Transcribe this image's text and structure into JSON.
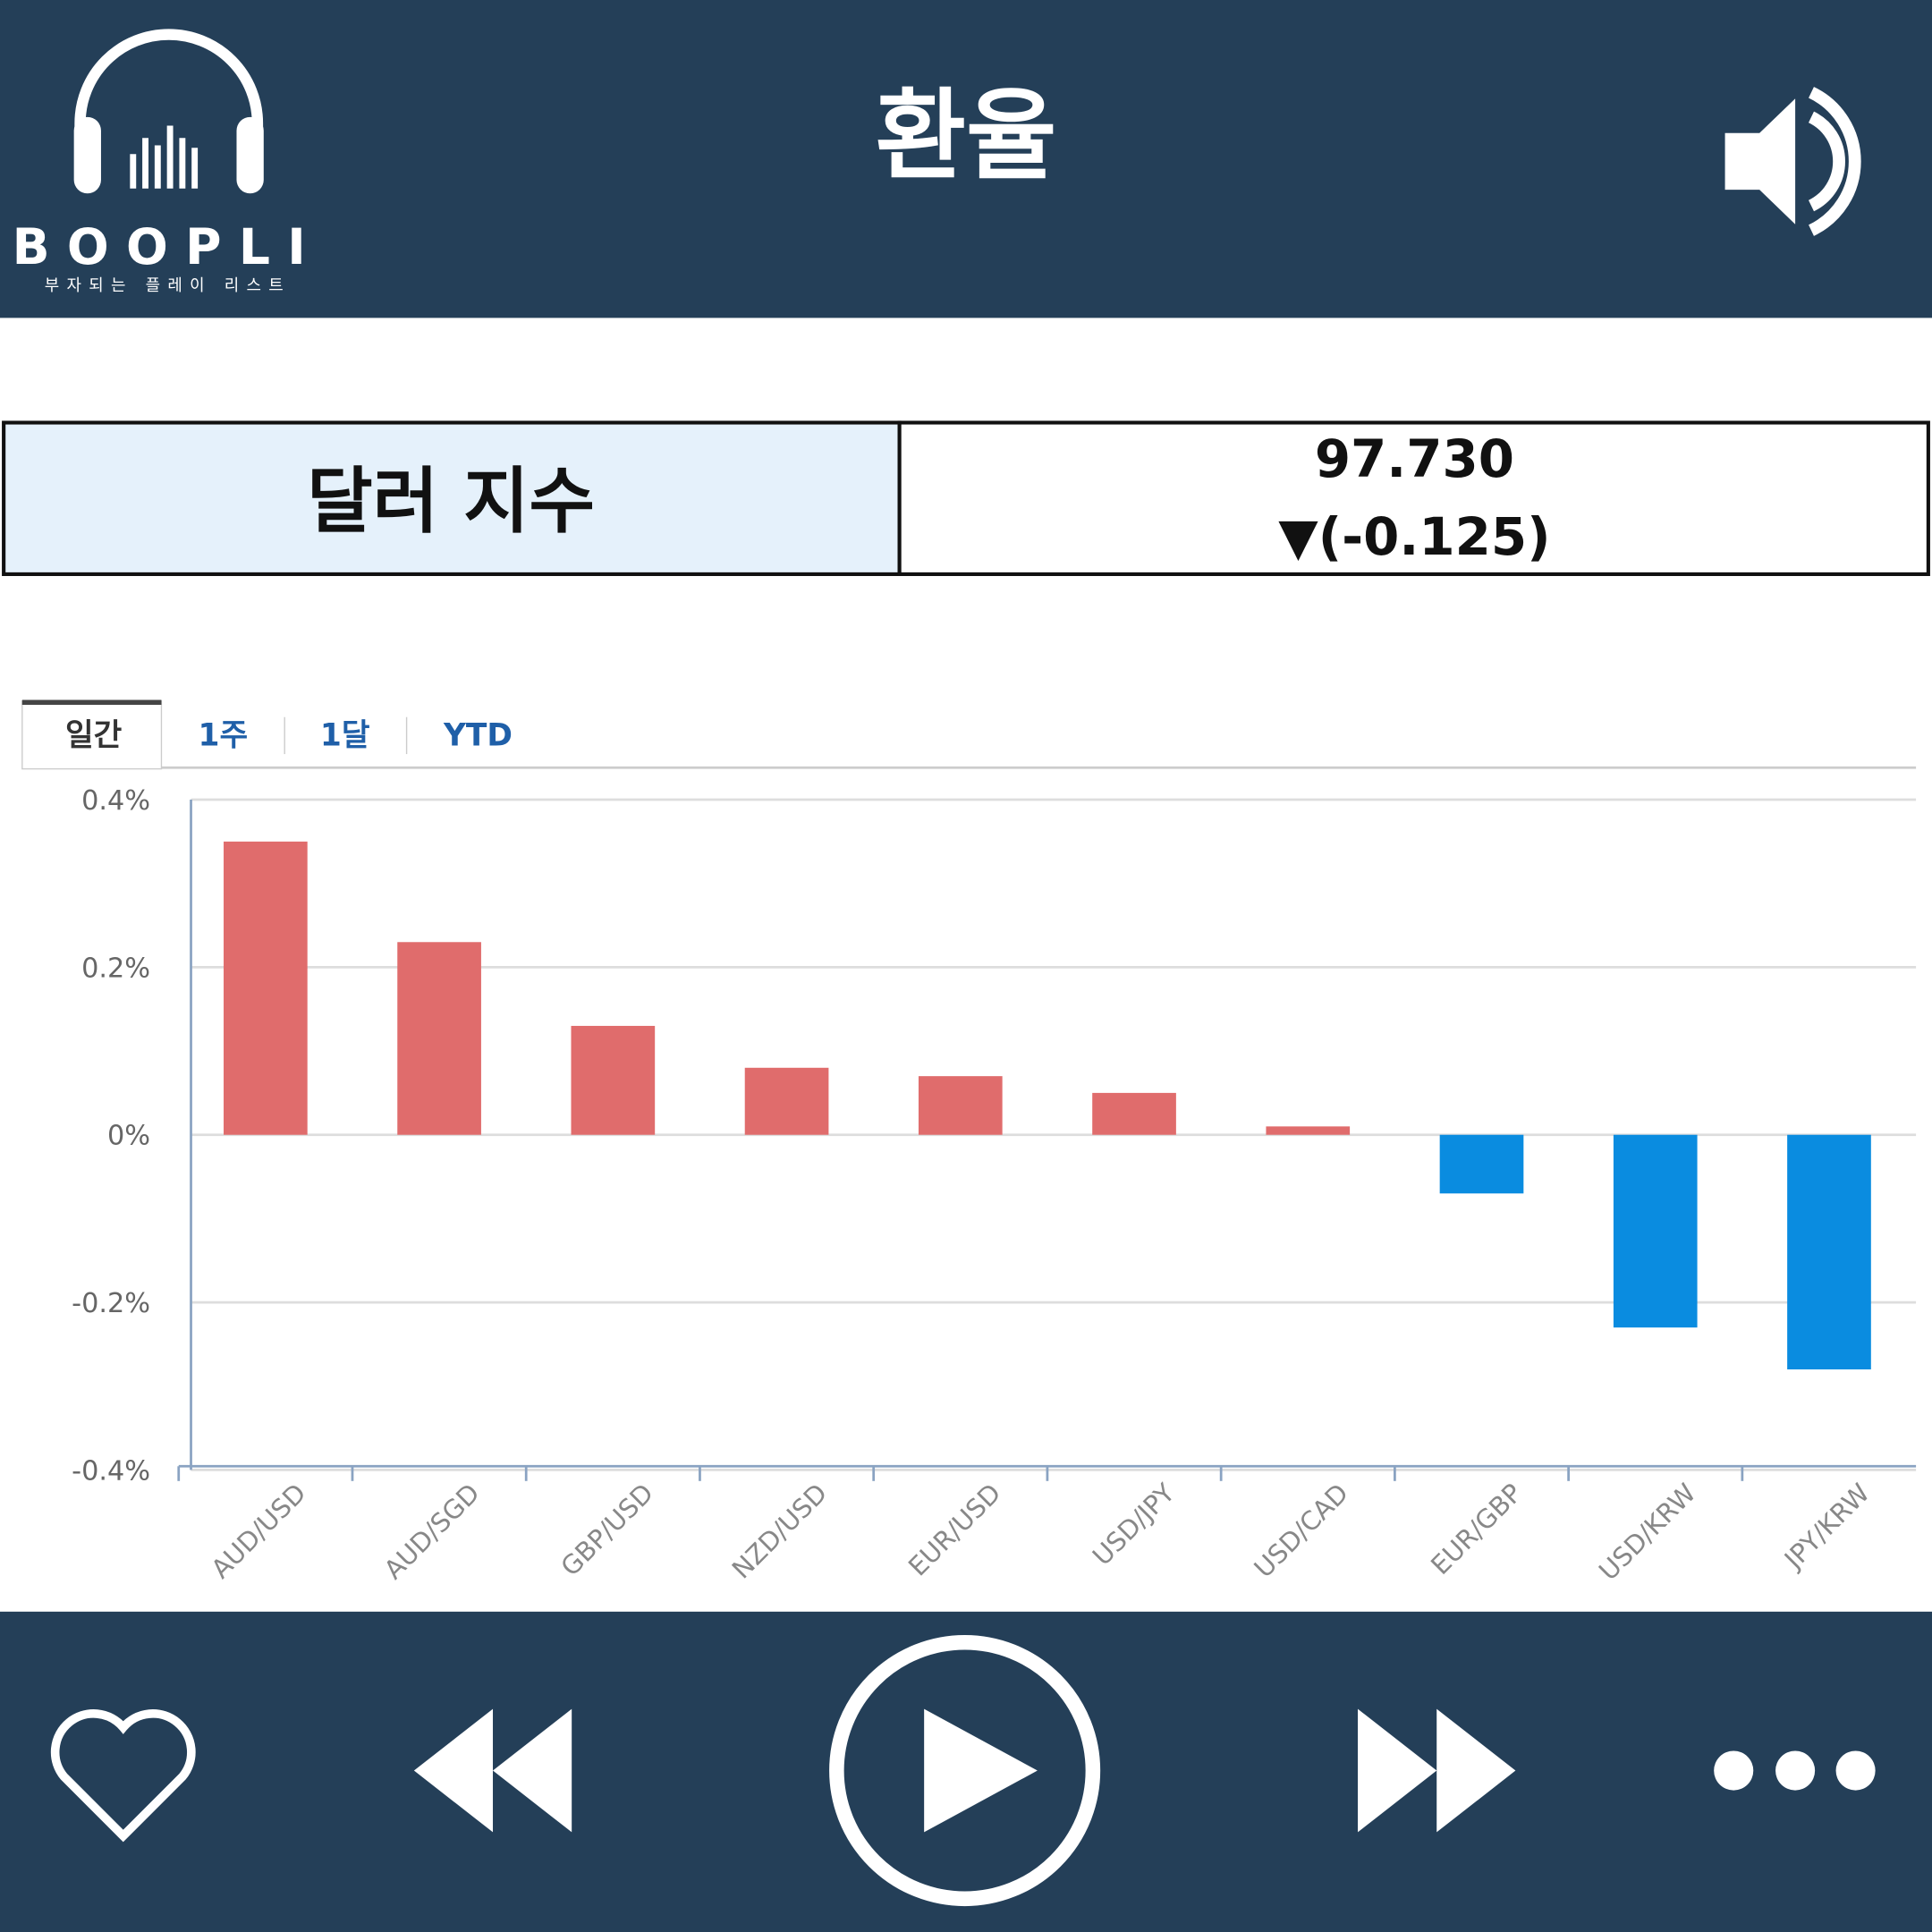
{
  "header": {
    "title": "환율",
    "logo": "BOOPLI",
    "slogan": "부자되는 플레이 리스트"
  },
  "index": {
    "label": "달러 지수",
    "value": "97.730",
    "change": "▼(-0.125)"
  },
  "tabs": [
    "일간",
    "1주",
    "1달",
    "YTD"
  ],
  "chart_data": {
    "type": "bar",
    "categories": [
      "AUD/USD",
      "AUD/SGD",
      "GBP/USD",
      "NZD/USD",
      "EUR/USD",
      "USD/JPY",
      "USD/CAD",
      "EUR/GBP",
      "USD/KRW",
      "JPY/KRW"
    ],
    "values": [
      0.35,
      0.23,
      0.13,
      0.08,
      0.07,
      0.05,
      0.01,
      -0.07,
      -0.23,
      -0.28
    ],
    "colors": {
      "positive": "#e06c6c",
      "negative": "#0a8ce0"
    },
    "ylim": [
      -0.4,
      0.4
    ],
    "yticks": [
      {
        "value": -0.4,
        "label": "-0.4%"
      },
      {
        "value": -0.2,
        "label": "-0.2%"
      },
      {
        "value": 0,
        "label": "0%"
      },
      {
        "value": 0.2,
        "label": "0.2%"
      },
      {
        "value": 0.4,
        "label": "0.4%"
      }
    ],
    "grid": true
  }
}
